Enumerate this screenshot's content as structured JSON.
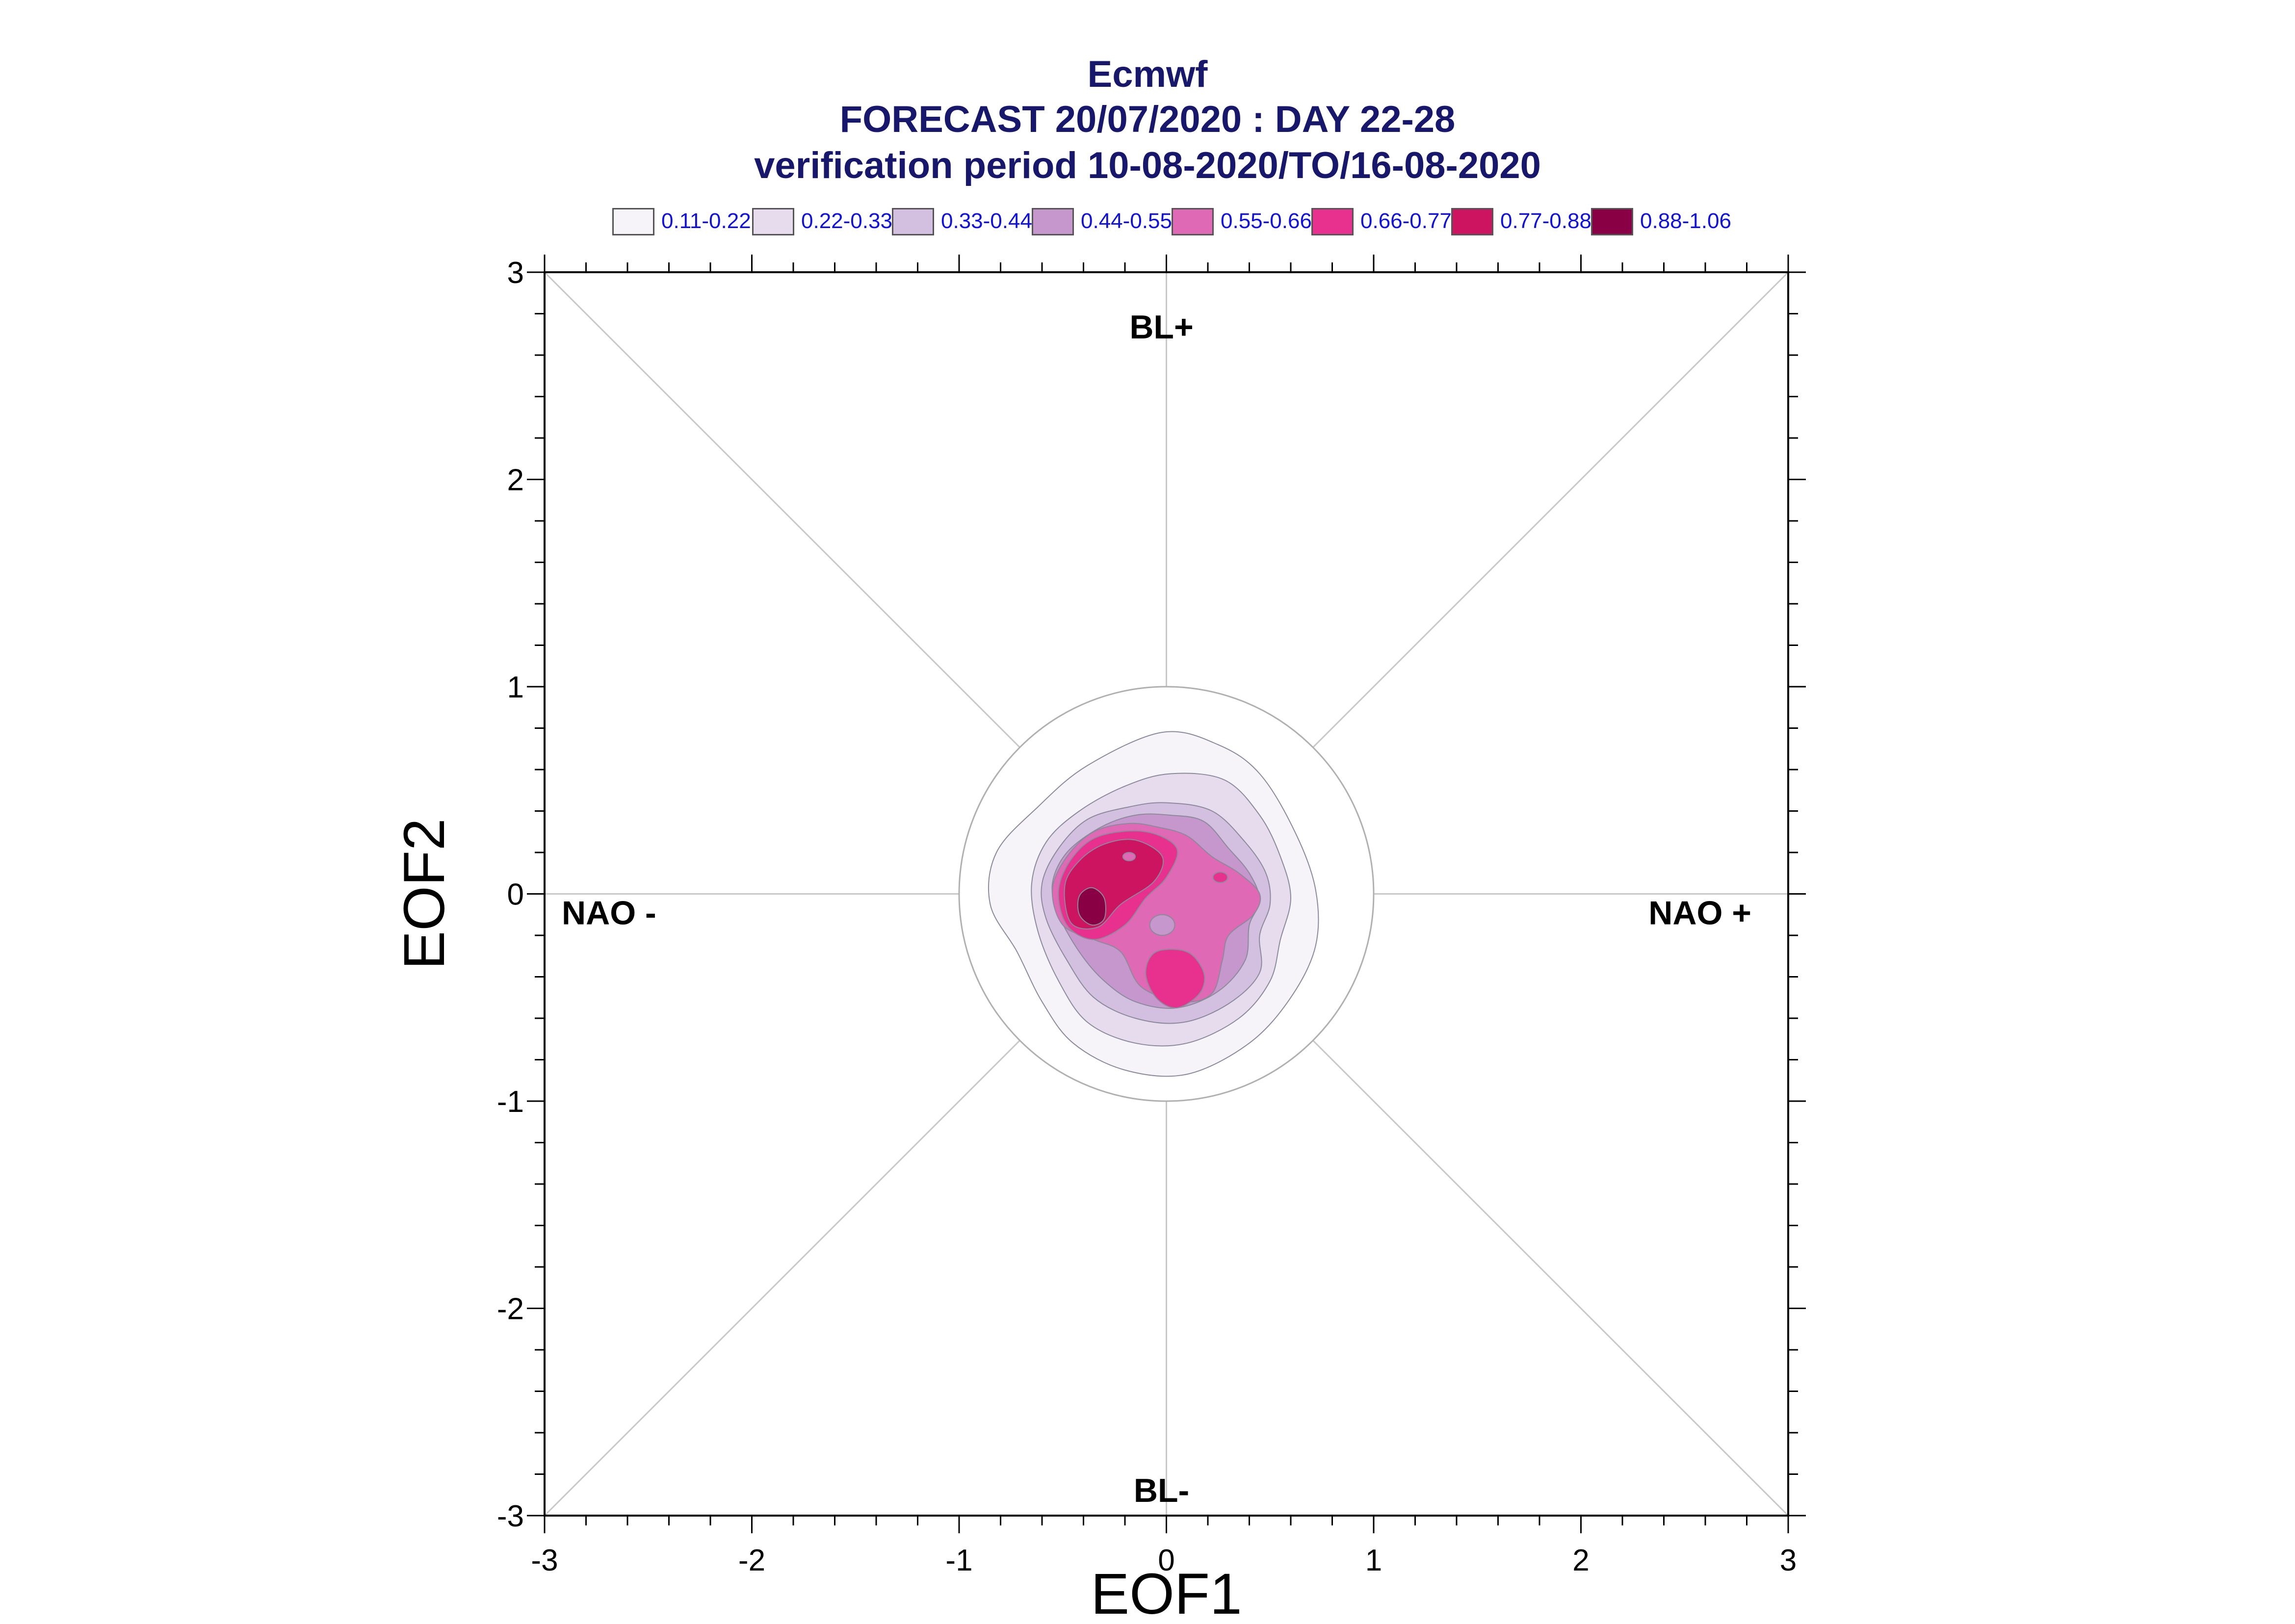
{
  "chart_data": {
    "type": "contour",
    "title": "Ecmwf",
    "subtitle_1": "FORECAST 20/07/2020 : DAY 22-28",
    "subtitle_2": "verification period 10-08-2020/TO/16-08-2020",
    "xlabel": "EOF1",
    "ylabel": "EOF2",
    "xlim": [
      -3,
      3
    ],
    "ylim": [
      -3,
      3
    ],
    "x_ticks": [
      "-3",
      "-2",
      "-1",
      "0",
      "1",
      "2",
      "3"
    ],
    "y_ticks": [
      "3",
      "2",
      "1",
      "0",
      "-1",
      "-2",
      "-3"
    ],
    "regime_labels": {
      "top": "BL+",
      "bottom": "BL-",
      "left": "NAO -",
      "right": "NAO +"
    },
    "legend": [
      {
        "label": "0.11-0.22",
        "color": "#f6f3f9"
      },
      {
        "label": "0.22-0.33",
        "color": "#e6dcee"
      },
      {
        "label": "0.33-0.44",
        "color": "#d3bfdf"
      },
      {
        "label": "0.44-0.55",
        "color": "#c597cc"
      },
      {
        "label": "0.55-0.66",
        "color": "#e069b5"
      },
      {
        "label": "0.66-0.77",
        "color": "#e8308e"
      },
      {
        "label": "0.77-0.88",
        "color": "#cc1460"
      },
      {
        "label": "0.88-1.06",
        "color": "#8a0045"
      }
    ],
    "reference_circle_radius": 1.0,
    "density_peaks": [
      {
        "x": -0.35,
        "y": -0.07,
        "level": "0.88-1.06"
      },
      {
        "x": -0.18,
        "y": 0.18,
        "level": "0.77-0.88"
      }
    ],
    "grid": "diagonals and axes through origin",
    "legend_position": "top"
  }
}
